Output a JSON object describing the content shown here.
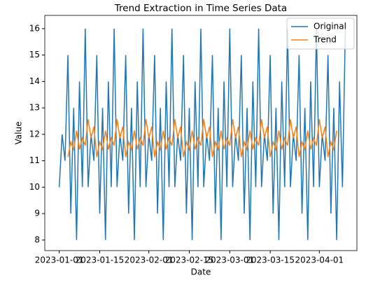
{
  "chart_data": {
    "type": "line",
    "title": "Trend Extraction in Time Series Data",
    "xlabel": "Date",
    "ylabel": "Value",
    "x": [
      "2023-01-01",
      "2023-01-02",
      "2023-01-03",
      "2023-01-04",
      "2023-01-05",
      "2023-01-06",
      "2023-01-07",
      "2023-01-08",
      "2023-01-09",
      "2023-01-10",
      "2023-01-11",
      "2023-01-12",
      "2023-01-13",
      "2023-01-14",
      "2023-01-15",
      "2023-01-16",
      "2023-01-17",
      "2023-01-18",
      "2023-01-19",
      "2023-01-20",
      "2023-01-21",
      "2023-01-22",
      "2023-01-23",
      "2023-01-24",
      "2023-01-25",
      "2023-01-26",
      "2023-01-27",
      "2023-01-28",
      "2023-01-29",
      "2023-01-30",
      "2023-01-31",
      "2023-02-01",
      "2023-02-02",
      "2023-02-03",
      "2023-02-04",
      "2023-02-05",
      "2023-02-06",
      "2023-02-07",
      "2023-02-08",
      "2023-02-09",
      "2023-02-10",
      "2023-02-11",
      "2023-02-12",
      "2023-02-13",
      "2023-02-14",
      "2023-02-15",
      "2023-02-16",
      "2023-02-17",
      "2023-02-18",
      "2023-02-19",
      "2023-02-20",
      "2023-02-21",
      "2023-02-22",
      "2023-02-23",
      "2023-02-24",
      "2023-02-25",
      "2023-02-26",
      "2023-02-27",
      "2023-02-28",
      "2023-03-01",
      "2023-03-02",
      "2023-03-03",
      "2023-03-04",
      "2023-03-05",
      "2023-03-06",
      "2023-03-07",
      "2023-03-08",
      "2023-03-09",
      "2023-03-10",
      "2023-03-11",
      "2023-03-12",
      "2023-03-13",
      "2023-03-14",
      "2023-03-15",
      "2023-03-16",
      "2023-03-17",
      "2023-03-18",
      "2023-03-19",
      "2023-03-20",
      "2023-03-21",
      "2023-03-22",
      "2023-03-23",
      "2023-03-24",
      "2023-03-25",
      "2023-03-26",
      "2023-03-27",
      "2023-03-28",
      "2023-03-29",
      "2023-03-30",
      "2023-03-31",
      "2023-04-01",
      "2023-04-02",
      "2023-04-03",
      "2023-04-04",
      "2023-04-05",
      "2023-04-06",
      "2023-04-07",
      "2023-04-08",
      "2023-04-09",
      "2023-04-10"
    ],
    "series": [
      {
        "name": "Original",
        "color": "#1f77b4",
        "values": [
          10,
          12,
          11,
          15,
          9,
          13,
          8,
          14,
          10,
          16,
          10,
          12,
          11,
          15,
          9,
          13,
          8,
          14,
          10,
          16,
          10,
          12,
          11,
          15,
          9,
          13,
          8,
          14,
          10,
          16,
          10,
          12,
          11,
          15,
          9,
          13,
          8,
          14,
          10,
          16,
          10,
          12,
          11,
          15,
          9,
          13,
          8,
          14,
          10,
          16,
          10,
          12,
          11,
          15,
          9,
          13,
          8,
          14,
          10,
          16,
          10,
          12,
          11,
          15,
          9,
          13,
          8,
          14,
          10,
          16,
          10,
          12,
          11,
          15,
          9,
          13,
          8,
          14,
          10,
          16,
          10,
          12,
          11,
          15,
          9,
          13,
          8,
          14,
          10,
          16,
          10,
          12,
          11,
          15,
          9,
          13,
          8,
          14,
          10,
          16
        ]
      },
      {
        "name": "Trend",
        "color": "#ff7f0e",
        "values": [
          null,
          null,
          null,
          11.14,
          11.71,
          11.43,
          12.14,
          11.43,
          11.86,
          11.57,
          12.57,
          11.86,
          12.29,
          11.14,
          11.71,
          11.43,
          12.14,
          11.43,
          11.86,
          11.57,
          12.57,
          11.86,
          12.29,
          11.14,
          11.71,
          11.43,
          12.14,
          11.43,
          11.86,
          11.57,
          12.57,
          11.86,
          12.29,
          11.14,
          11.71,
          11.43,
          12.14,
          11.43,
          11.86,
          11.57,
          12.57,
          11.86,
          12.29,
          11.14,
          11.71,
          11.43,
          12.14,
          11.43,
          11.86,
          11.57,
          12.57,
          11.86,
          12.29,
          11.14,
          11.71,
          11.43,
          12.14,
          11.43,
          11.86,
          11.57,
          12.57,
          11.86,
          12.29,
          11.14,
          11.71,
          11.43,
          12.14,
          11.43,
          11.86,
          11.57,
          12.57,
          11.86,
          12.29,
          11.14,
          11.71,
          11.43,
          12.14,
          11.43,
          11.86,
          11.57,
          12.57,
          11.86,
          12.29,
          11.14,
          11.71,
          11.43,
          12.14,
          11.43,
          11.86,
          11.57,
          12.57,
          11.86,
          12.29,
          11.14,
          11.71,
          11.43,
          12.14,
          null,
          null,
          null
        ]
      }
    ],
    "xlim": [
      "2022-12-27",
      "2023-04-14"
    ],
    "xticks": [
      "2023-01-01",
      "2023-01-15",
      "2023-02-01",
      "2023-02-15",
      "2023-03-01",
      "2023-03-15",
      "2023-04-01"
    ],
    "ylim": [
      7.6,
      16.5
    ],
    "yticks": [
      8,
      9,
      10,
      11,
      12,
      13,
      14,
      15,
      16
    ],
    "legend": "upper right",
    "grid": false
  }
}
